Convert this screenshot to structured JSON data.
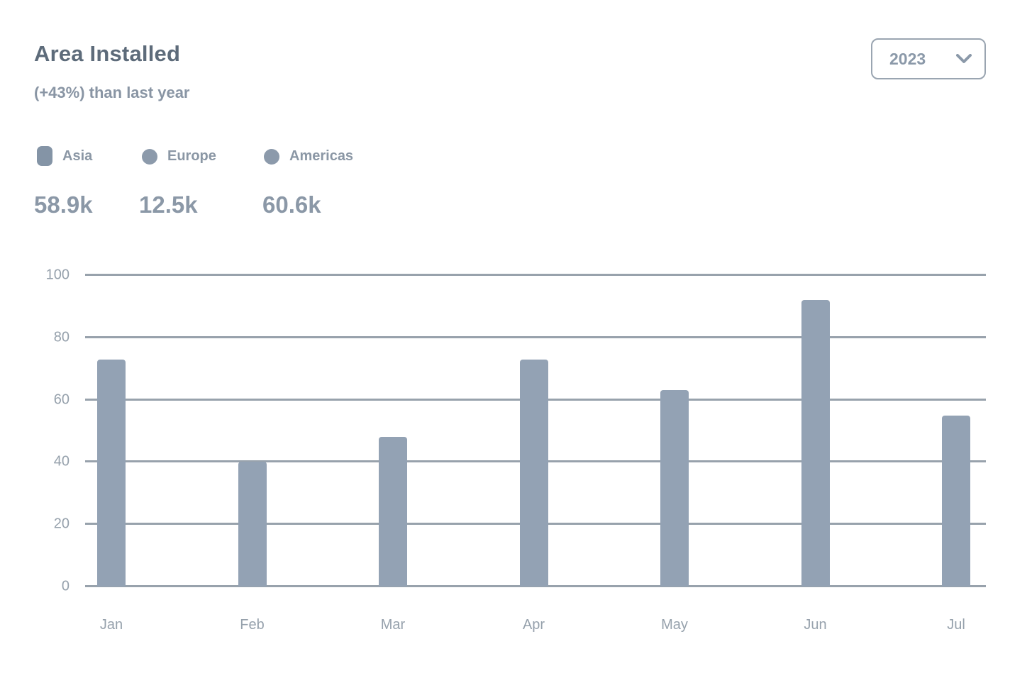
{
  "header": {
    "title": "Area Installed",
    "subtitle": "(+43%) than last year",
    "year_select": {
      "value": "2023",
      "icon": "chevron-down-icon"
    }
  },
  "legend": [
    {
      "name": "Asia",
      "value": "58.9k",
      "marker": "square-marker"
    },
    {
      "name": "Europe",
      "value": "12.5k",
      "marker": "circle-marker"
    },
    {
      "name": "Americas",
      "value": "60.6k",
      "marker": "circle-marker"
    }
  ],
  "chart_data": {
    "type": "bar",
    "title": "Area Installed",
    "categories": [
      "Jan",
      "Feb",
      "Mar",
      "Apr",
      "May",
      "Jun",
      "Jul"
    ],
    "values": [
      73,
      40,
      48,
      73,
      63,
      92,
      55
    ],
    "xlabel": "",
    "ylabel": "",
    "ylim": [
      0,
      100
    ],
    "yticks": [
      0,
      20,
      40,
      60,
      80,
      100
    ],
    "grid": true,
    "legend_position": "top-left"
  },
  "colors": {
    "bar": "#93a2b4",
    "gridline": "#98a2ac",
    "title_text": "#5d6b7a",
    "muted_text": "#8b97a5",
    "axis_text": "#96a1ac"
  }
}
